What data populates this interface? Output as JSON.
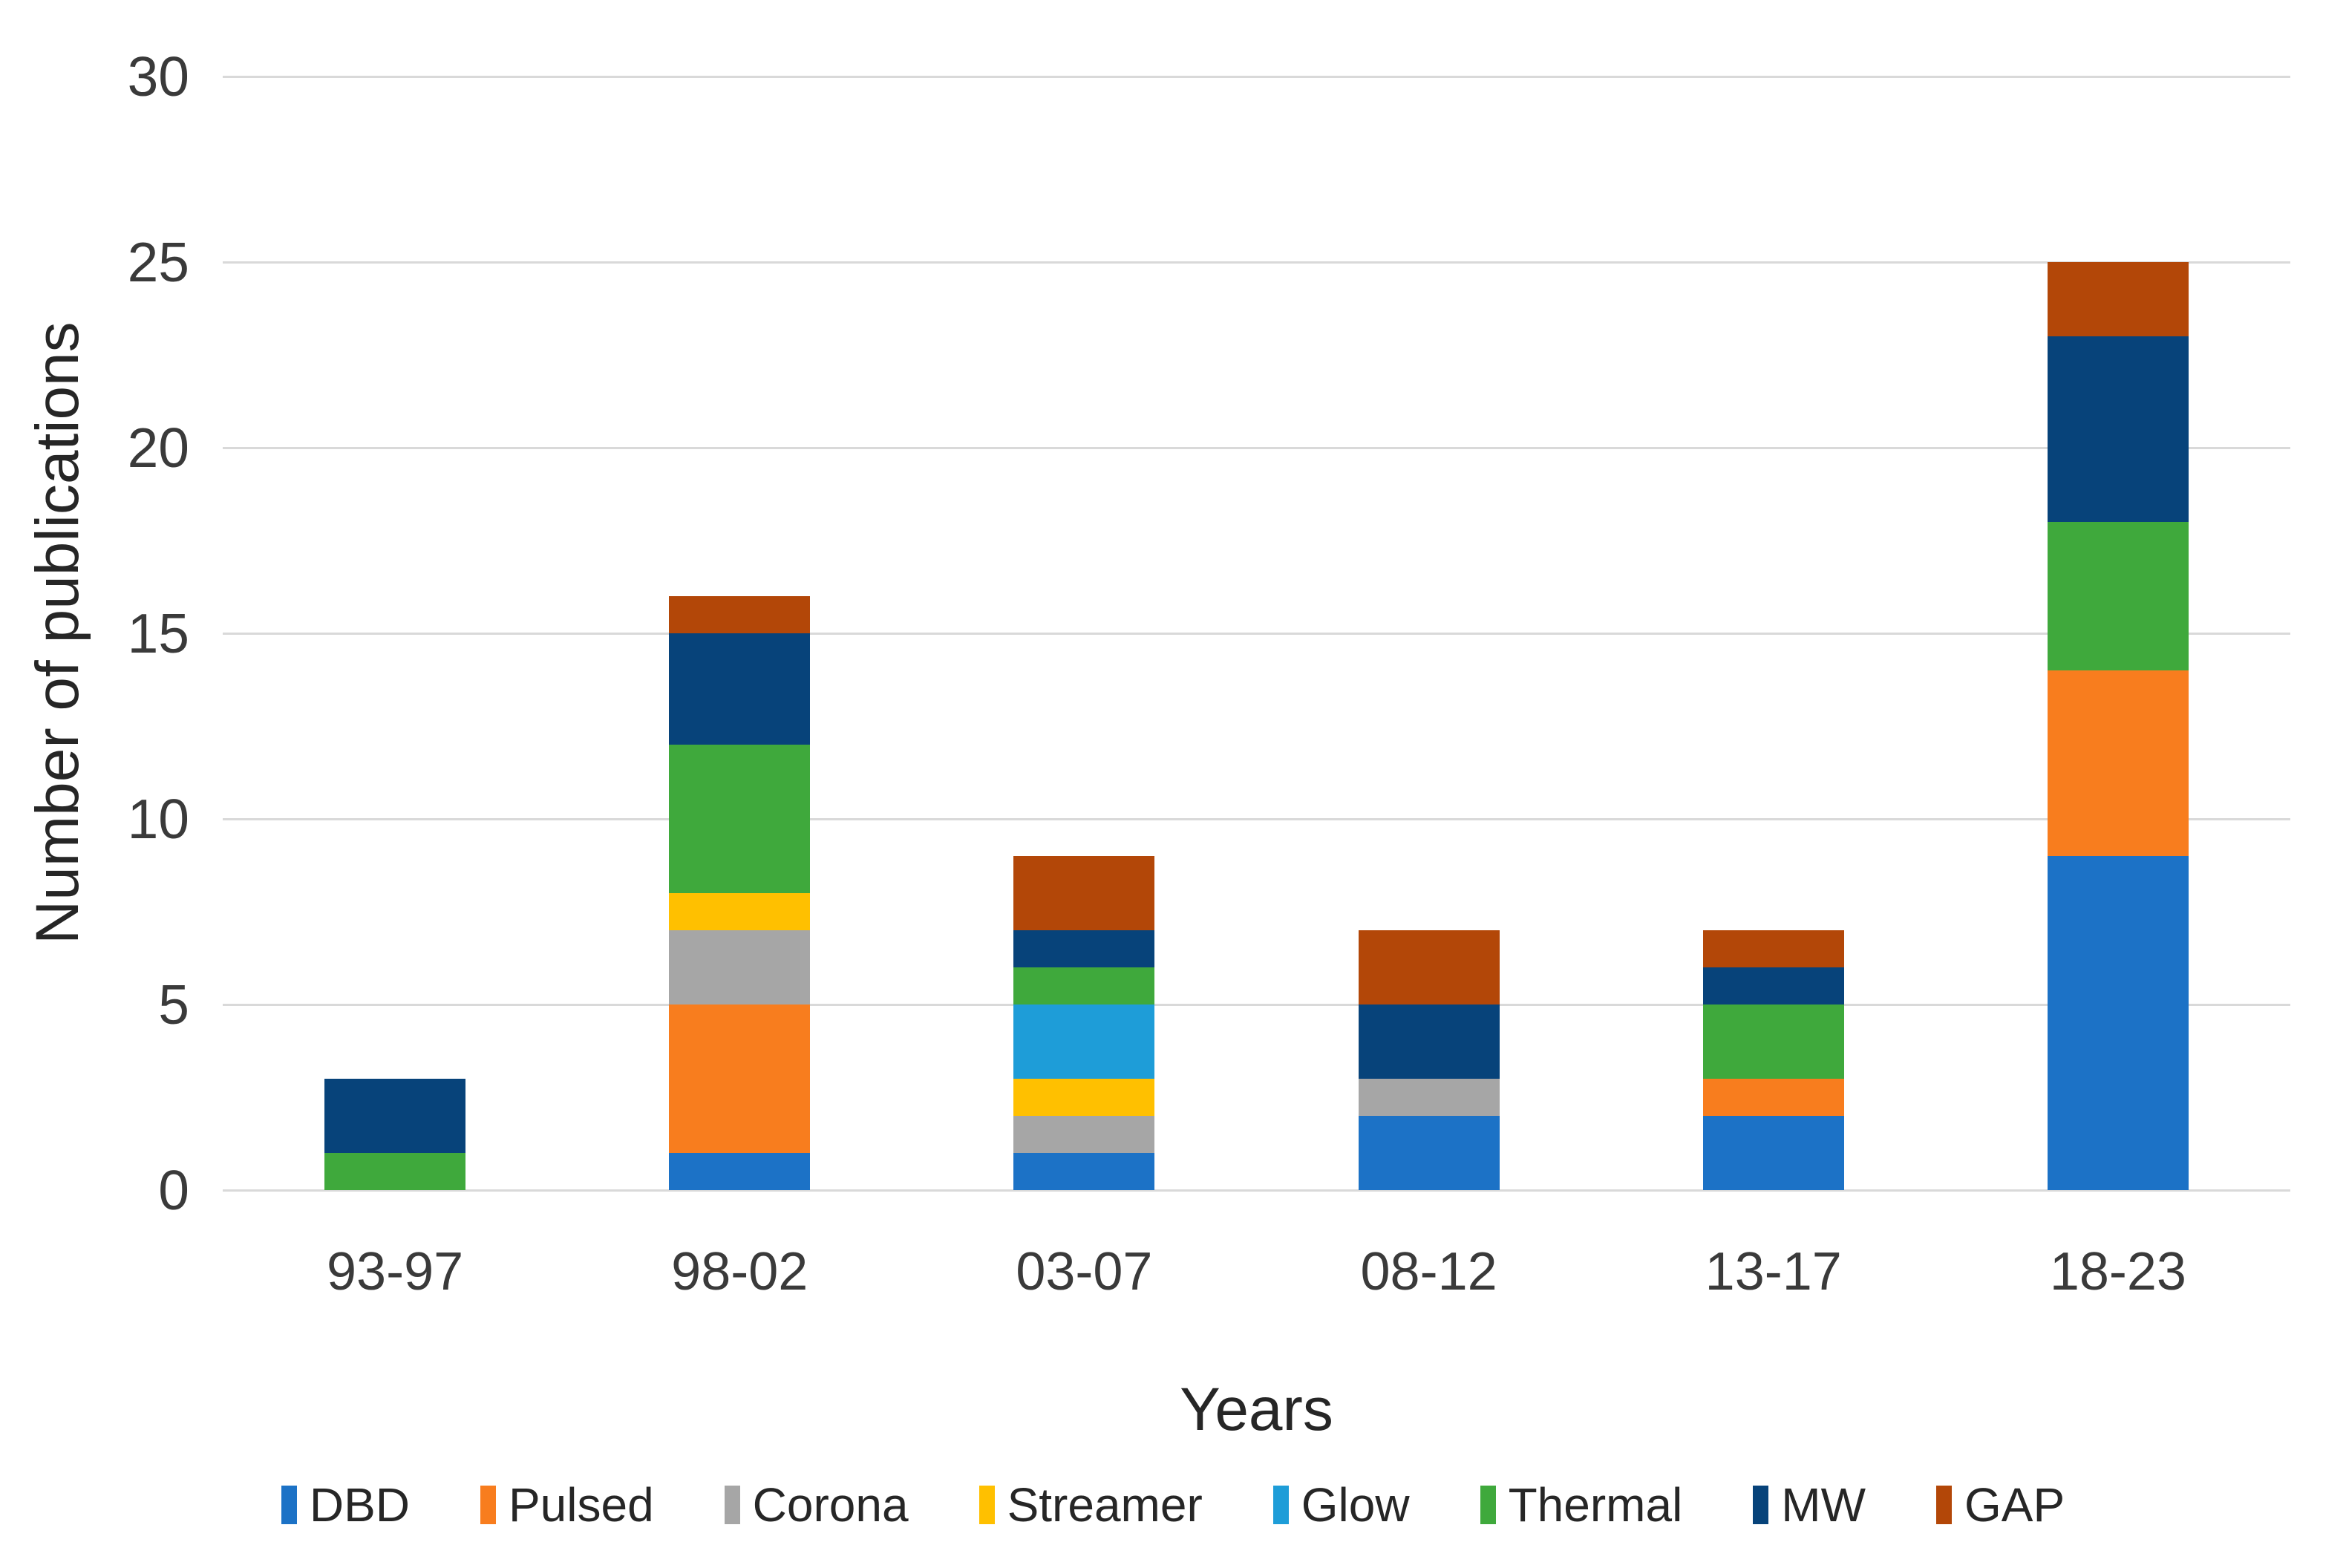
{
  "chart_data": {
    "type": "bar",
    "stacked": true,
    "title": "",
    "xlabel": "Years",
    "ylabel": "Number of publications",
    "categories": [
      "93-97",
      "98-02",
      "03-07",
      "08-12",
      "13-17",
      "18-23"
    ],
    "series": [
      {
        "name": "DBD",
        "color": "#1C72C6",
        "values": [
          0,
          1,
          1,
          2,
          2,
          9
        ]
      },
      {
        "name": "Pulsed",
        "color": "#F87D1E",
        "values": [
          0,
          4,
          0,
          0,
          1,
          5
        ]
      },
      {
        "name": "Corona",
        "color": "#A6A6A6",
        "values": [
          0,
          2,
          1,
          1,
          0,
          0
        ]
      },
      {
        "name": "Streamer",
        "color": "#FFC000",
        "values": [
          0,
          1,
          1,
          0,
          0,
          0
        ]
      },
      {
        "name": "Glow",
        "color": "#1E9DD8",
        "values": [
          0,
          0,
          2,
          0,
          0,
          0
        ]
      },
      {
        "name": "Thermal",
        "color": "#3FA93C",
        "values": [
          1,
          4,
          1,
          0,
          2,
          4
        ]
      },
      {
        "name": "MW",
        "color": "#07437A",
        "values": [
          2,
          3,
          1,
          2,
          1,
          5
        ]
      },
      {
        "name": "GAP",
        "color": "#B34708",
        "values": [
          0,
          1,
          2,
          2,
          1,
          2
        ]
      }
    ],
    "yticks": [
      0,
      5,
      10,
      15,
      20,
      25,
      30
    ],
    "ylim": [
      0,
      30
    ],
    "grid": true,
    "gridline_color": "#D9D9D9",
    "legend_position": "bottom"
  }
}
